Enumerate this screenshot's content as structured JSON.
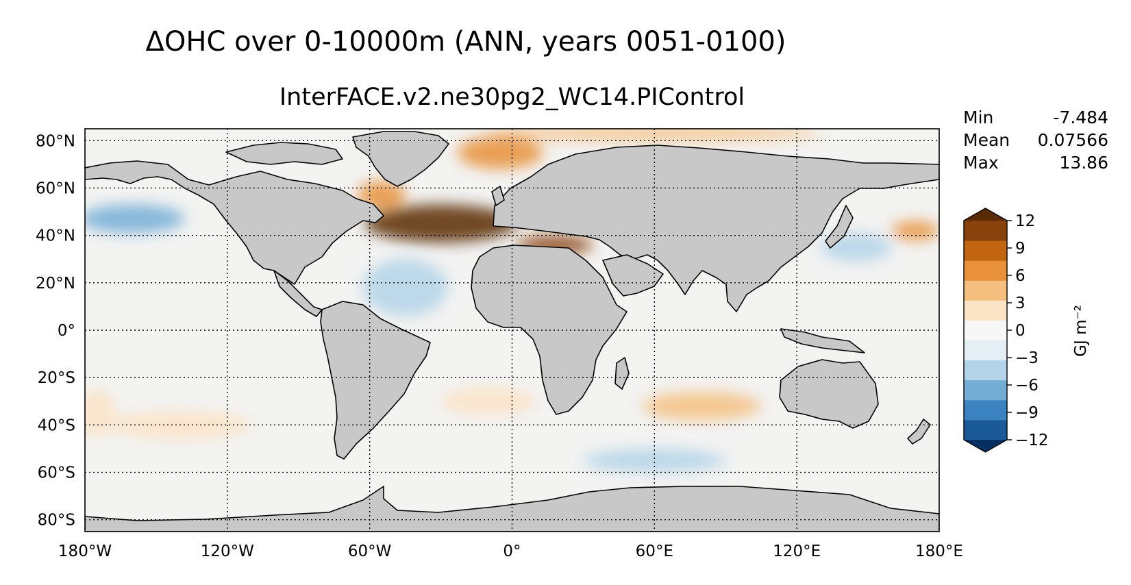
{
  "title": "ΔOHC over 0-10000m (ANN, years 0051-0100)",
  "subtitle": "InterFACE.v2.ne30pg2_WC14.PIControl",
  "stats": [
    {
      "label": "Min",
      "value": "-7.484"
    },
    {
      "label": "Mean",
      "value": "0.07566"
    },
    {
      "label": "Max",
      "value": "13.86"
    }
  ],
  "map": {
    "projection": "PlateCarree",
    "lon_range": [
      -180,
      180
    ],
    "lat_range": [
      -85,
      85
    ],
    "land_color": "#c8c8c8",
    "ocean_base_color": "#f3f3f2",
    "gridlines": "dotted",
    "lon_ticks": [
      {
        "value": -180,
        "label": "180°W"
      },
      {
        "value": -120,
        "label": "120°W"
      },
      {
        "value": -60,
        "label": "60°W"
      },
      {
        "value": 0,
        "label": "0°"
      },
      {
        "value": 60,
        "label": "60°E"
      },
      {
        "value": 120,
        "label": "120°E"
      },
      {
        "value": 180,
        "label": "180°E"
      }
    ],
    "lat_ticks": [
      {
        "value": 80,
        "label": "80°N"
      },
      {
        "value": 60,
        "label": "60°N"
      },
      {
        "value": 40,
        "label": "40°N"
      },
      {
        "value": 20,
        "label": "20°N"
      },
      {
        "value": 0,
        "label": "0°"
      },
      {
        "value": -20,
        "label": "20°S"
      },
      {
        "value": -40,
        "label": "40°S"
      },
      {
        "value": -60,
        "label": "60°S"
      },
      {
        "value": -80,
        "label": "80°S"
      }
    ]
  },
  "colorbar": {
    "label": "GJ m⁻²",
    "range": [
      -12,
      12
    ],
    "extend": "both",
    "ticks": [
      {
        "value": 12,
        "label": "12"
      },
      {
        "value": 9,
        "label": "9"
      },
      {
        "value": 6,
        "label": "6"
      },
      {
        "value": 3,
        "label": "3"
      },
      {
        "value": 0,
        "label": "0"
      },
      {
        "value": -3,
        "label": "−3"
      },
      {
        "value": -6,
        "label": "−6"
      },
      {
        "value": -9,
        "label": "−9"
      },
      {
        "value": -12,
        "label": "−12"
      }
    ],
    "colors": [
      "#053061",
      "#1b5a99",
      "#3a83c0",
      "#73add6",
      "#b3d3e8",
      "#e3eef5",
      "#f7f7f7",
      "#fbe3c5",
      "#f5bf80",
      "#e8913a",
      "#c26510",
      "#8a420c",
      "#5a2a05"
    ]
  },
  "anomalies": [
    {
      "name": "north-atlantic-warm",
      "lon": -30,
      "lat": 45,
      "rx": 32,
      "ry": 8,
      "value": 11
    },
    {
      "name": "labrador-warm",
      "lon": -55,
      "lat": 57,
      "rx": 10,
      "ry": 6,
      "value": 5
    },
    {
      "name": "greenland-sea-warm",
      "lon": -5,
      "lat": 75,
      "rx": 18,
      "ry": 7,
      "value": 6
    },
    {
      "name": "arctic-fringe-warm",
      "lon": 60,
      "lat": 83,
      "rx": 70,
      "ry": 3,
      "value": 3
    },
    {
      "name": "mediterranean-warm",
      "lon": 18,
      "lat": 36,
      "rx": 16,
      "ry": 4,
      "value": 10
    },
    {
      "name": "kuroshio-warm",
      "lon": 170,
      "lat": 42,
      "rx": 10,
      "ry": 4,
      "value": 5
    },
    {
      "name": "north-pacific-cool",
      "lon": -160,
      "lat": 47,
      "rx": 22,
      "ry": 6,
      "value": -5
    },
    {
      "name": "tropical-atlantic-cool",
      "lon": -45,
      "lat": 18,
      "rx": 18,
      "ry": 12,
      "value": -4
    },
    {
      "name": "west-pacific-cool",
      "lon": 145,
      "lat": 35,
      "rx": 15,
      "ry": 6,
      "value": -3
    },
    {
      "name": "south-indian-warm",
      "lon": 80,
      "lat": -32,
      "rx": 25,
      "ry": 6,
      "value": 3
    },
    {
      "name": "south-atlantic-warm",
      "lon": -10,
      "lat": -30,
      "rx": 20,
      "ry": 6,
      "value": 2
    },
    {
      "name": "south-pacific-warm",
      "lon": -140,
      "lat": -40,
      "rx": 30,
      "ry": 6,
      "value": 2
    },
    {
      "name": "southern-ocean-cool",
      "lon": 60,
      "lat": -55,
      "rx": 30,
      "ry": 5,
      "value": -3
    },
    {
      "name": "east-pacific-warm",
      "lon": -175,
      "lat": -35,
      "rx": 8,
      "ry": 10,
      "value": 2
    }
  ]
}
